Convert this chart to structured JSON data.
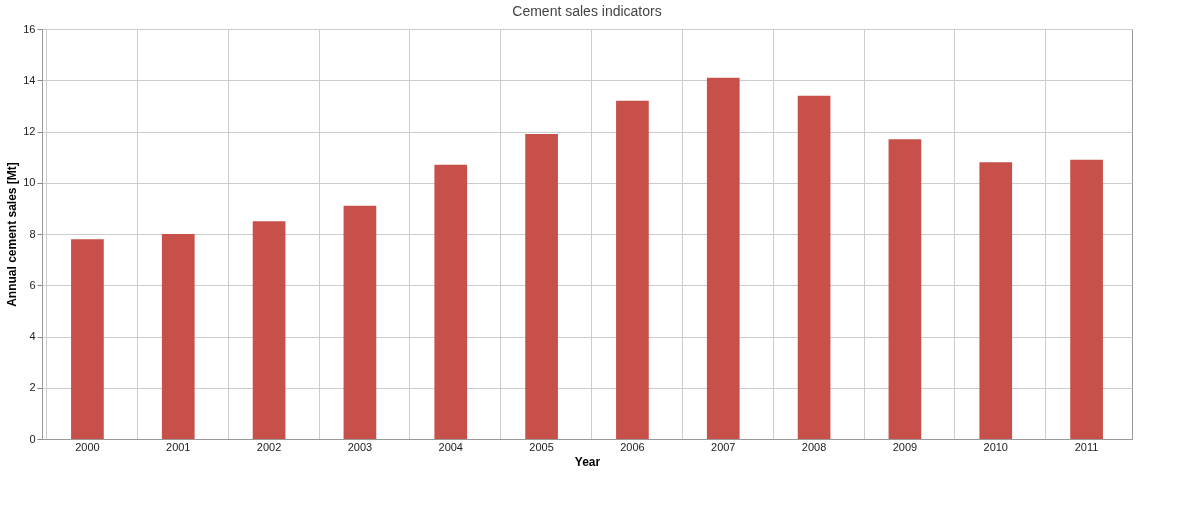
{
  "chart_data": {
    "type": "bar",
    "title": "Cement sales indicators",
    "xlabel": "Year",
    "ylabel": "Annual cement sales [Mt]",
    "categories": [
      "2000",
      "2001",
      "2002",
      "2003",
      "2004",
      "2005",
      "2006",
      "2007",
      "2008",
      "2009",
      "2010",
      "2011"
    ],
    "values": [
      7.8,
      8.0,
      8.5,
      9.1,
      10.7,
      11.9,
      13.2,
      14.1,
      13.4,
      11.7,
      10.8,
      10.9
    ],
    "color": "#c8504a",
    "ylim": [
      0,
      16
    ],
    "yticks": [
      0,
      2,
      4,
      6,
      8,
      10,
      12,
      14,
      16
    ],
    "grid": true
  }
}
